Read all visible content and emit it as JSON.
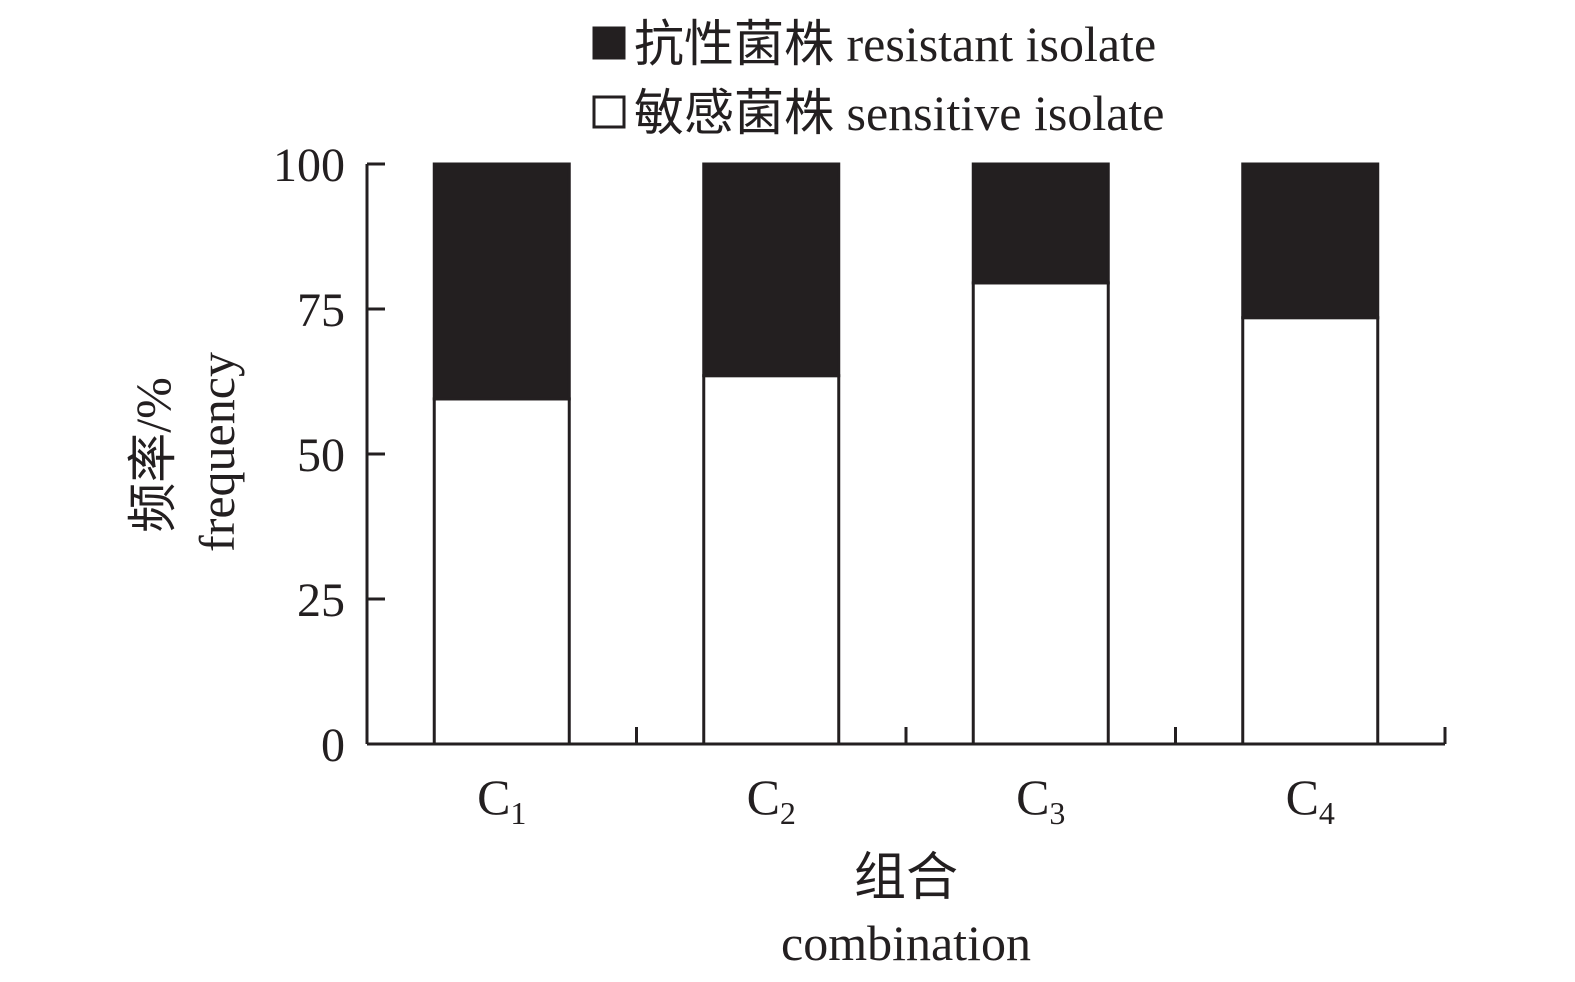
{
  "colors": {
    "ink": "#231f20",
    "resistant_fill": "#231f20",
    "sensitive_fill": "#ffffff"
  },
  "chart_data": {
    "type": "bar",
    "stacked": true,
    "categories": [
      {
        "base": "C",
        "sub": "1"
      },
      {
        "base": "C",
        "sub": "2"
      },
      {
        "base": "C",
        "sub": "3"
      },
      {
        "base": "C",
        "sub": "4"
      }
    ],
    "series": [
      {
        "name": "敏感菌株 sensitive isolate",
        "name_cn": "敏感菌株",
        "name_en": "sensitive isolate",
        "color": "#ffffff",
        "values": [
          59.5,
          63.5,
          79.5,
          73.5
        ]
      },
      {
        "name": "抗性菌株 resistant isolate",
        "name_cn": "抗性菌株",
        "name_en": "resistant isolate",
        "color": "#231f20",
        "values": [
          40.5,
          36.5,
          20.5,
          26.5
        ]
      }
    ],
    "legend_order": [
      1,
      0
    ],
    "legend_position": "top",
    "ylim": [
      0,
      100
    ],
    "yticks": [
      0,
      25,
      50,
      75,
      100
    ],
    "ylabel_cn": "频率/%",
    "ylabel_en": "frequency",
    "xlabel_cn": "组合",
    "xlabel_en": "combination",
    "grid": false
  }
}
